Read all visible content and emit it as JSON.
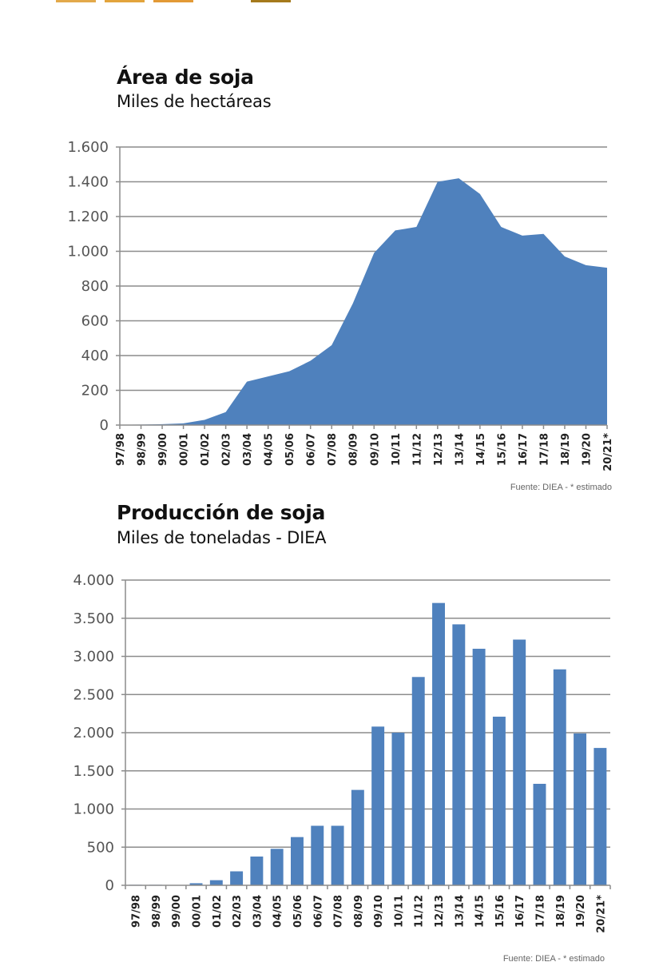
{
  "decorations": {
    "colors": [
      "#e3a94a",
      "#e3a43c",
      "#e39a36",
      "#a57a1c"
    ]
  },
  "chart_data": [
    {
      "type": "area",
      "title": "Área de soja",
      "subtitle": "Miles de hectáreas",
      "xlabel": "",
      "ylabel": "",
      "ylim": [
        0,
        1600
      ],
      "yticks": [
        0,
        200,
        400,
        600,
        800,
        1000,
        1200,
        1400,
        1600
      ],
      "ytick_labels": [
        "0",
        "200",
        "400",
        "600",
        "800",
        "1.000",
        "1.200",
        "1.400",
        "1.600"
      ],
      "grid": true,
      "color": "#4f81bd",
      "categories": [
        "97/98",
        "98/99",
        "99/00",
        "00/01",
        "01/02",
        "02/03",
        "03/04",
        "04/05",
        "05/06",
        "06/07",
        "07/08",
        "08/09",
        "09/10",
        "10/11",
        "11/12",
        "12/13",
        "13/14",
        "14/15",
        "15/16",
        "16/17",
        "17/18",
        "18/19",
        "19/20",
        "20/21*"
      ],
      "values": [
        2,
        3,
        5,
        10,
        30,
        75,
        250,
        280,
        310,
        370,
        460,
        700,
        990,
        1120,
        1140,
        1400,
        1420,
        1330,
        1140,
        1090,
        1100,
        970,
        920,
        905
      ],
      "source": "Fuente: DIEA - * estimado"
    },
    {
      "type": "bar",
      "title": "Producción de soja",
      "subtitle": "Miles de toneladas - DIEA",
      "xlabel": "",
      "ylabel": "",
      "ylim": [
        0,
        4000
      ],
      "yticks": [
        0,
        500,
        1000,
        1500,
        2000,
        2500,
        3000,
        3500,
        4000
      ],
      "ytick_labels": [
        "0",
        "500",
        "1.000",
        "1.500",
        "2.000",
        "2.500",
        "3.000",
        "3.500",
        "4.000"
      ],
      "grid": true,
      "color": "#4f81bd",
      "categories": [
        "97/98",
        "98/99",
        "99/00",
        "00/01",
        "01/02",
        "02/03",
        "03/04",
        "04/05",
        "05/06",
        "06/07",
        "07/08",
        "08/09",
        "09/10",
        "10/11",
        "11/12",
        "12/13",
        "13/14",
        "14/15",
        "15/16",
        "16/17",
        "17/18",
        "18/19",
        "19/20",
        "20/21*"
      ],
      "values": [
        7,
        7,
        0,
        27,
        67,
        183,
        377,
        478,
        632,
        780,
        780,
        1250,
        2080,
        2000,
        2730,
        3700,
        3420,
        3100,
        2210,
        3220,
        1330,
        2830,
        1990,
        1800
      ],
      "source": "Fuente: DIEA - * estimado"
    }
  ]
}
